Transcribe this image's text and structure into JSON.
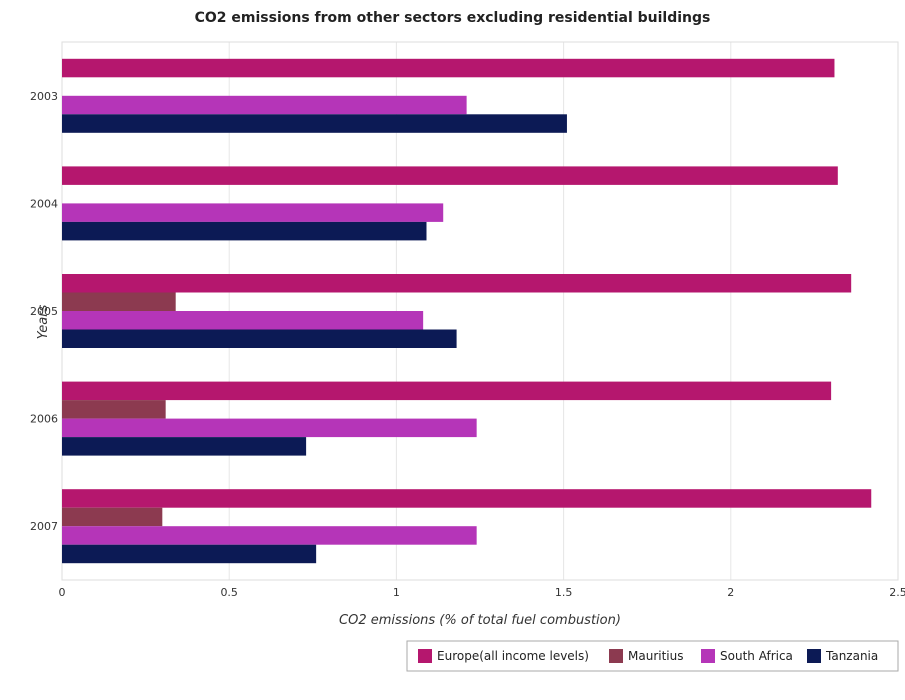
{
  "chart_data": {
    "type": "bar",
    "orientation": "horizontal",
    "title": "CO2 emissions from other sectors excluding residential buildings",
    "xlabel": "CO2 emissions (% of total fuel combustion)",
    "ylabel": "Years",
    "xlim": [
      0,
      2.5
    ],
    "xticks": [
      "0",
      "0.5",
      "1",
      "1.5",
      "2",
      "2.5"
    ],
    "categories": [
      "2003",
      "2004",
      "2005",
      "2006",
      "2007"
    ],
    "series": [
      {
        "name": "Europe(all income levels)",
        "color": "#b5176e",
        "values": [
          2.31,
          2.32,
          2.36,
          2.3,
          2.42
        ]
      },
      {
        "name": "Mauritius",
        "color": "#8c3a50",
        "values": [
          0,
          0,
          0.34,
          0.31,
          0.3
        ]
      },
      {
        "name": "South Africa",
        "color": "#b535b8",
        "values": [
          1.21,
          1.14,
          1.08,
          1.24,
          1.24
        ]
      },
      {
        "name": "Tanzania",
        "color": "#0c1a55",
        "values": [
          1.51,
          1.09,
          1.18,
          0.73,
          0.76
        ]
      }
    ],
    "grid": true,
    "legend_position": "bottom-right"
  }
}
